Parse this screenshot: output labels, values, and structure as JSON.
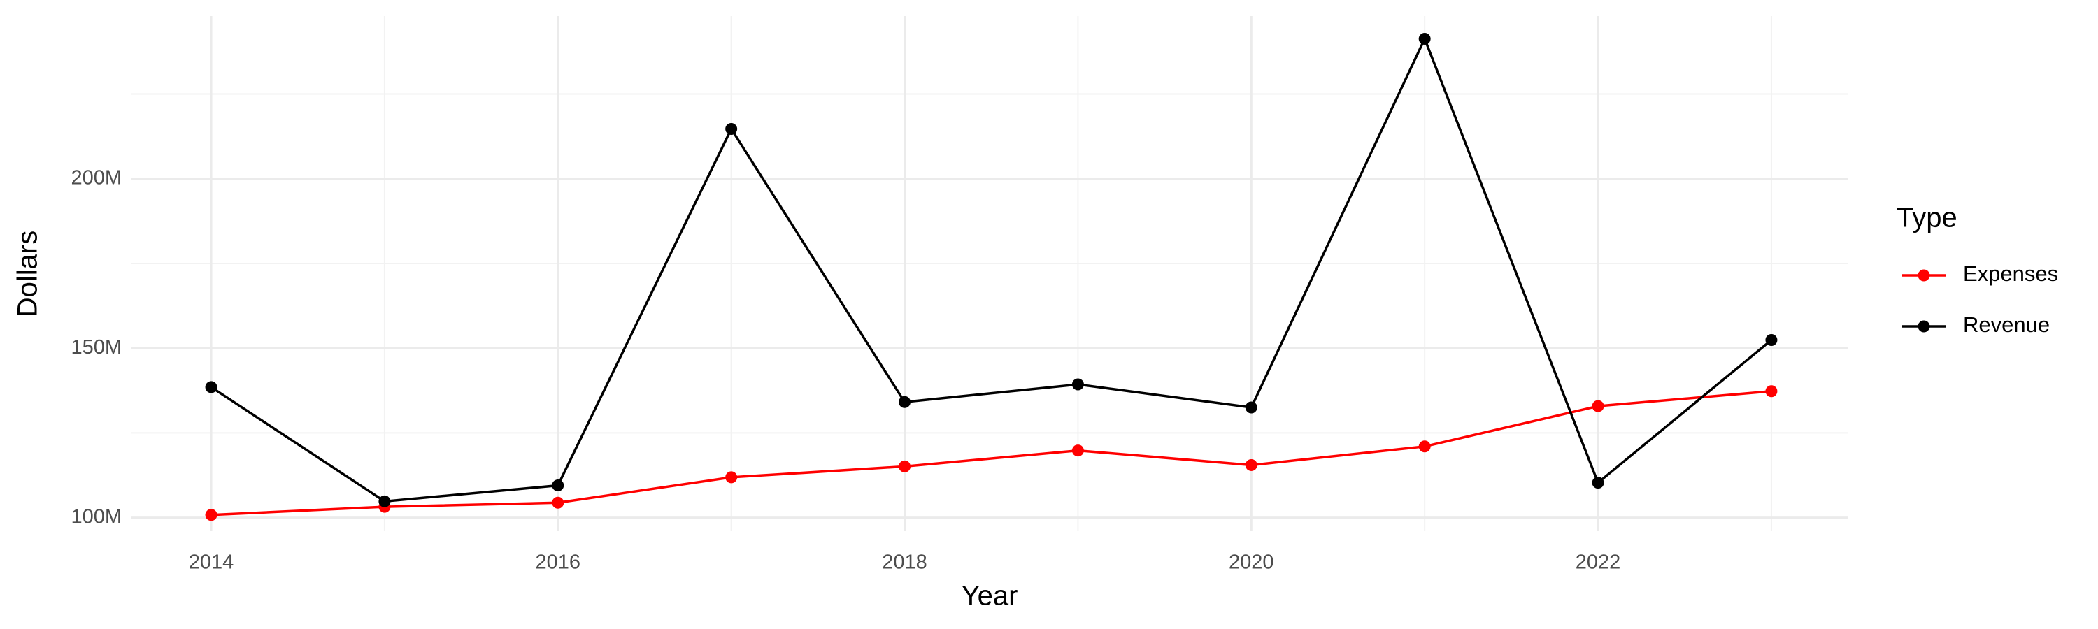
{
  "chart_data": {
    "type": "line",
    "x_label": "Year",
    "y_label": "Dollars",
    "legend_title": "Type",
    "x": [
      2014,
      2015,
      2016,
      2017,
      2018,
      2019,
      2020,
      2021,
      2022,
      2023
    ],
    "series": [
      {
        "name": "Expenses",
        "color": "#ff0000",
        "values": [
          100800000,
          103200000,
          104400000,
          111900000,
          115100000,
          119800000,
          115500000,
          121000000,
          132900000,
          137300000
        ]
      },
      {
        "name": "Revenue",
        "color": "#000000",
        "values": [
          138500000,
          104800000,
          109500000,
          214700000,
          134100000,
          139300000,
          132500000,
          241300000,
          110300000,
          152400000
        ]
      }
    ],
    "xlim": [
      2013.54,
      2023.44
    ],
    "ylim": [
      96000000,
      248000000
    ],
    "xticks": [
      2014,
      2016,
      2018,
      2020,
      2022
    ],
    "yticks": [
      {
        "value": 100000000,
        "label": "100M"
      },
      {
        "value": 150000000,
        "label": "150M"
      },
      {
        "value": 200000000,
        "label": "200M"
      }
    ],
    "x_minor_grid": [
      2015,
      2017,
      2019,
      2021,
      2023
    ],
    "y_minor_grid": [
      125000000,
      175000000,
      225000000
    ],
    "grid": true,
    "legend": "right"
  }
}
